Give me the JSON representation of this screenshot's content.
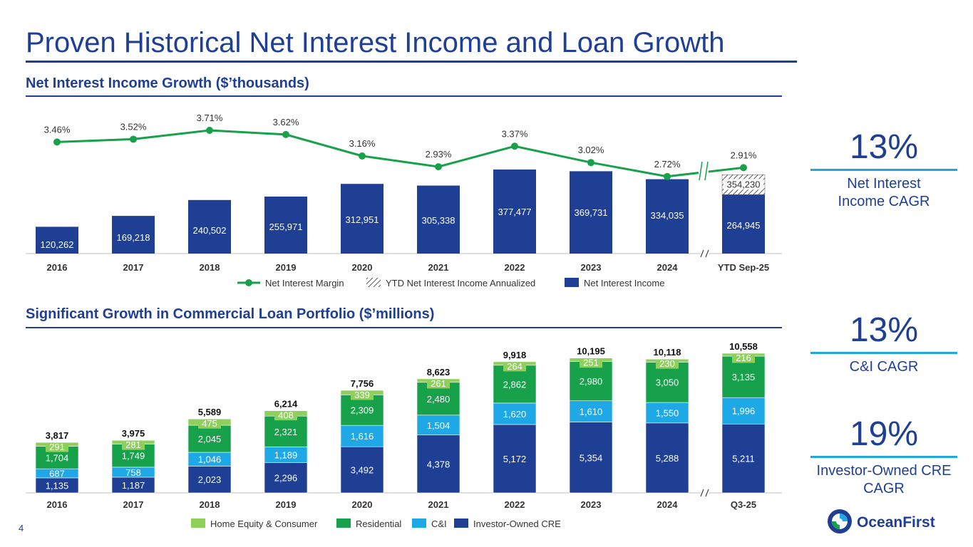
{
  "slide": {
    "title": "Proven Historical Net Interest Income and Loan Growth",
    "page_number": "4",
    "logo_text": "OceanFirst"
  },
  "nii_section": {
    "heading": "Net Interest Income Growth ($’thousands)"
  },
  "loan_section": {
    "heading": "Significant Growth in Commercial Loan Portfolio ($’millions)"
  },
  "kpis": [
    {
      "value": "13%",
      "label_lines": [
        "Net Interest",
        "Income CAGR"
      ]
    },
    {
      "value": "13%",
      "label_lines": [
        "C&I CAGR"
      ]
    },
    {
      "value": "19%",
      "label_lines": [
        "Investor-Owned CRE",
        "CAGR"
      ]
    }
  ],
  "colors": {
    "navy": "#1f3f94",
    "green": "#17a14a",
    "light_green": "#8fcf5b",
    "cyan": "#1fa8e6",
    "accent_rule": "#1fa8d9",
    "dark_text": "#333333"
  },
  "chart_data": [
    {
      "type": "bar",
      "title": "Net Interest Income Growth ($’thousands)",
      "categories": [
        "2016",
        "2017",
        "2018",
        "2019",
        "2020",
        "2021",
        "2022",
        "2023",
        "2024",
        "YTD Sep-25"
      ],
      "series": [
        {
          "name": "Net Interest Income",
          "values": [
            120262,
            169218,
            240502,
            255971,
            312951,
            305338,
            377477,
            369731,
            334035,
            264945
          ],
          "labels": [
            "120,262",
            "169,218",
            "240,502",
            "255,971",
            "312,951",
            "305,338",
            "377,477",
            "369,731",
            "334,035",
            "264,945"
          ]
        },
        {
          "name": "YTD Net Interest Income Annualized",
          "values": [
            null,
            null,
            null,
            null,
            null,
            null,
            null,
            null,
            null,
            354230
          ],
          "labels": [
            "",
            "",
            "",
            "",
            "",
            "",
            "",
            "",
            "",
            "354,230"
          ]
        },
        {
          "name": "Net Interest Margin",
          "type": "line",
          "values": [
            3.46,
            3.52,
            3.71,
            3.62,
            3.16,
            2.93,
            3.37,
            3.02,
            2.72,
            2.91
          ],
          "labels": [
            "3.46%",
            "3.52%",
            "3.71%",
            "3.62%",
            "3.16%",
            "2.93%",
            "3.37%",
            "3.02%",
            "2.72%",
            "2.91%"
          ]
        }
      ],
      "legend": [
        "Net Interest Margin",
        "YTD Net Interest Income Annualized",
        "Net Interest Income"
      ],
      "legend_position": "bottom",
      "axis_break_after": "2024",
      "ylim": [
        0,
        400000
      ]
    },
    {
      "type": "bar",
      "stacked": true,
      "title": "Significant Growth in Commercial Loan Portfolio ($’millions)",
      "categories": [
        "2016",
        "2017",
        "2018",
        "2019",
        "2020",
        "2021",
        "2022",
        "2023",
        "2024",
        "Q3-25"
      ],
      "series": [
        {
          "name": "Investor-Owned CRE",
          "values": [
            1135,
            1187,
            2023,
            2296,
            3492,
            4378,
            5172,
            5354,
            5288,
            5211
          ],
          "labels": [
            "1,135",
            "1,187",
            "2,023",
            "2,296",
            "3,492",
            "4,378",
            "5,172",
            "5,354",
            "5,288",
            "5,211"
          ]
        },
        {
          "name": "C&I",
          "values": [
            687,
            758,
            1046,
            1189,
            1616,
            1504,
            1620,
            1610,
            1550,
            1996
          ],
          "labels": [
            "687",
            "758",
            "1,046",
            "1,189",
            "1,616",
            "1,504",
            "1,620",
            "1,610",
            "1,550",
            "1,996"
          ]
        },
        {
          "name": "Residential",
          "values": [
            1704,
            1749,
            2045,
            2321,
            2309,
            2480,
            2862,
            2980,
            3050,
            3135
          ],
          "labels": [
            "1,704",
            "1,749",
            "2,045",
            "2,321",
            "2,309",
            "2,480",
            "2,862",
            "2,980",
            "3,050",
            "3,135"
          ]
        },
        {
          "name": "Home Equity & Consumer",
          "values": [
            291,
            281,
            475,
            408,
            339,
            261,
            264,
            251,
            230,
            216
          ],
          "labels": [
            "291",
            "281",
            "475",
            "408",
            "339",
            "261",
            "264",
            "251",
            "230",
            "216"
          ]
        }
      ],
      "totals": [
        3817,
        3975,
        5589,
        6214,
        7756,
        8623,
        9918,
        10195,
        10118,
        10558
      ],
      "total_labels": [
        "3,817",
        "3,975",
        "5,589",
        "6,214",
        "7,756",
        "8,623",
        "9,918",
        "10,195",
        "10,118",
        "10,558"
      ],
      "legend": [
        "Home Equity & Consumer",
        "Residential",
        "C&I",
        "Investor-Owned CRE"
      ],
      "legend_position": "bottom",
      "axis_break_after": "2024",
      "ylim": [
        0,
        11000
      ]
    }
  ]
}
